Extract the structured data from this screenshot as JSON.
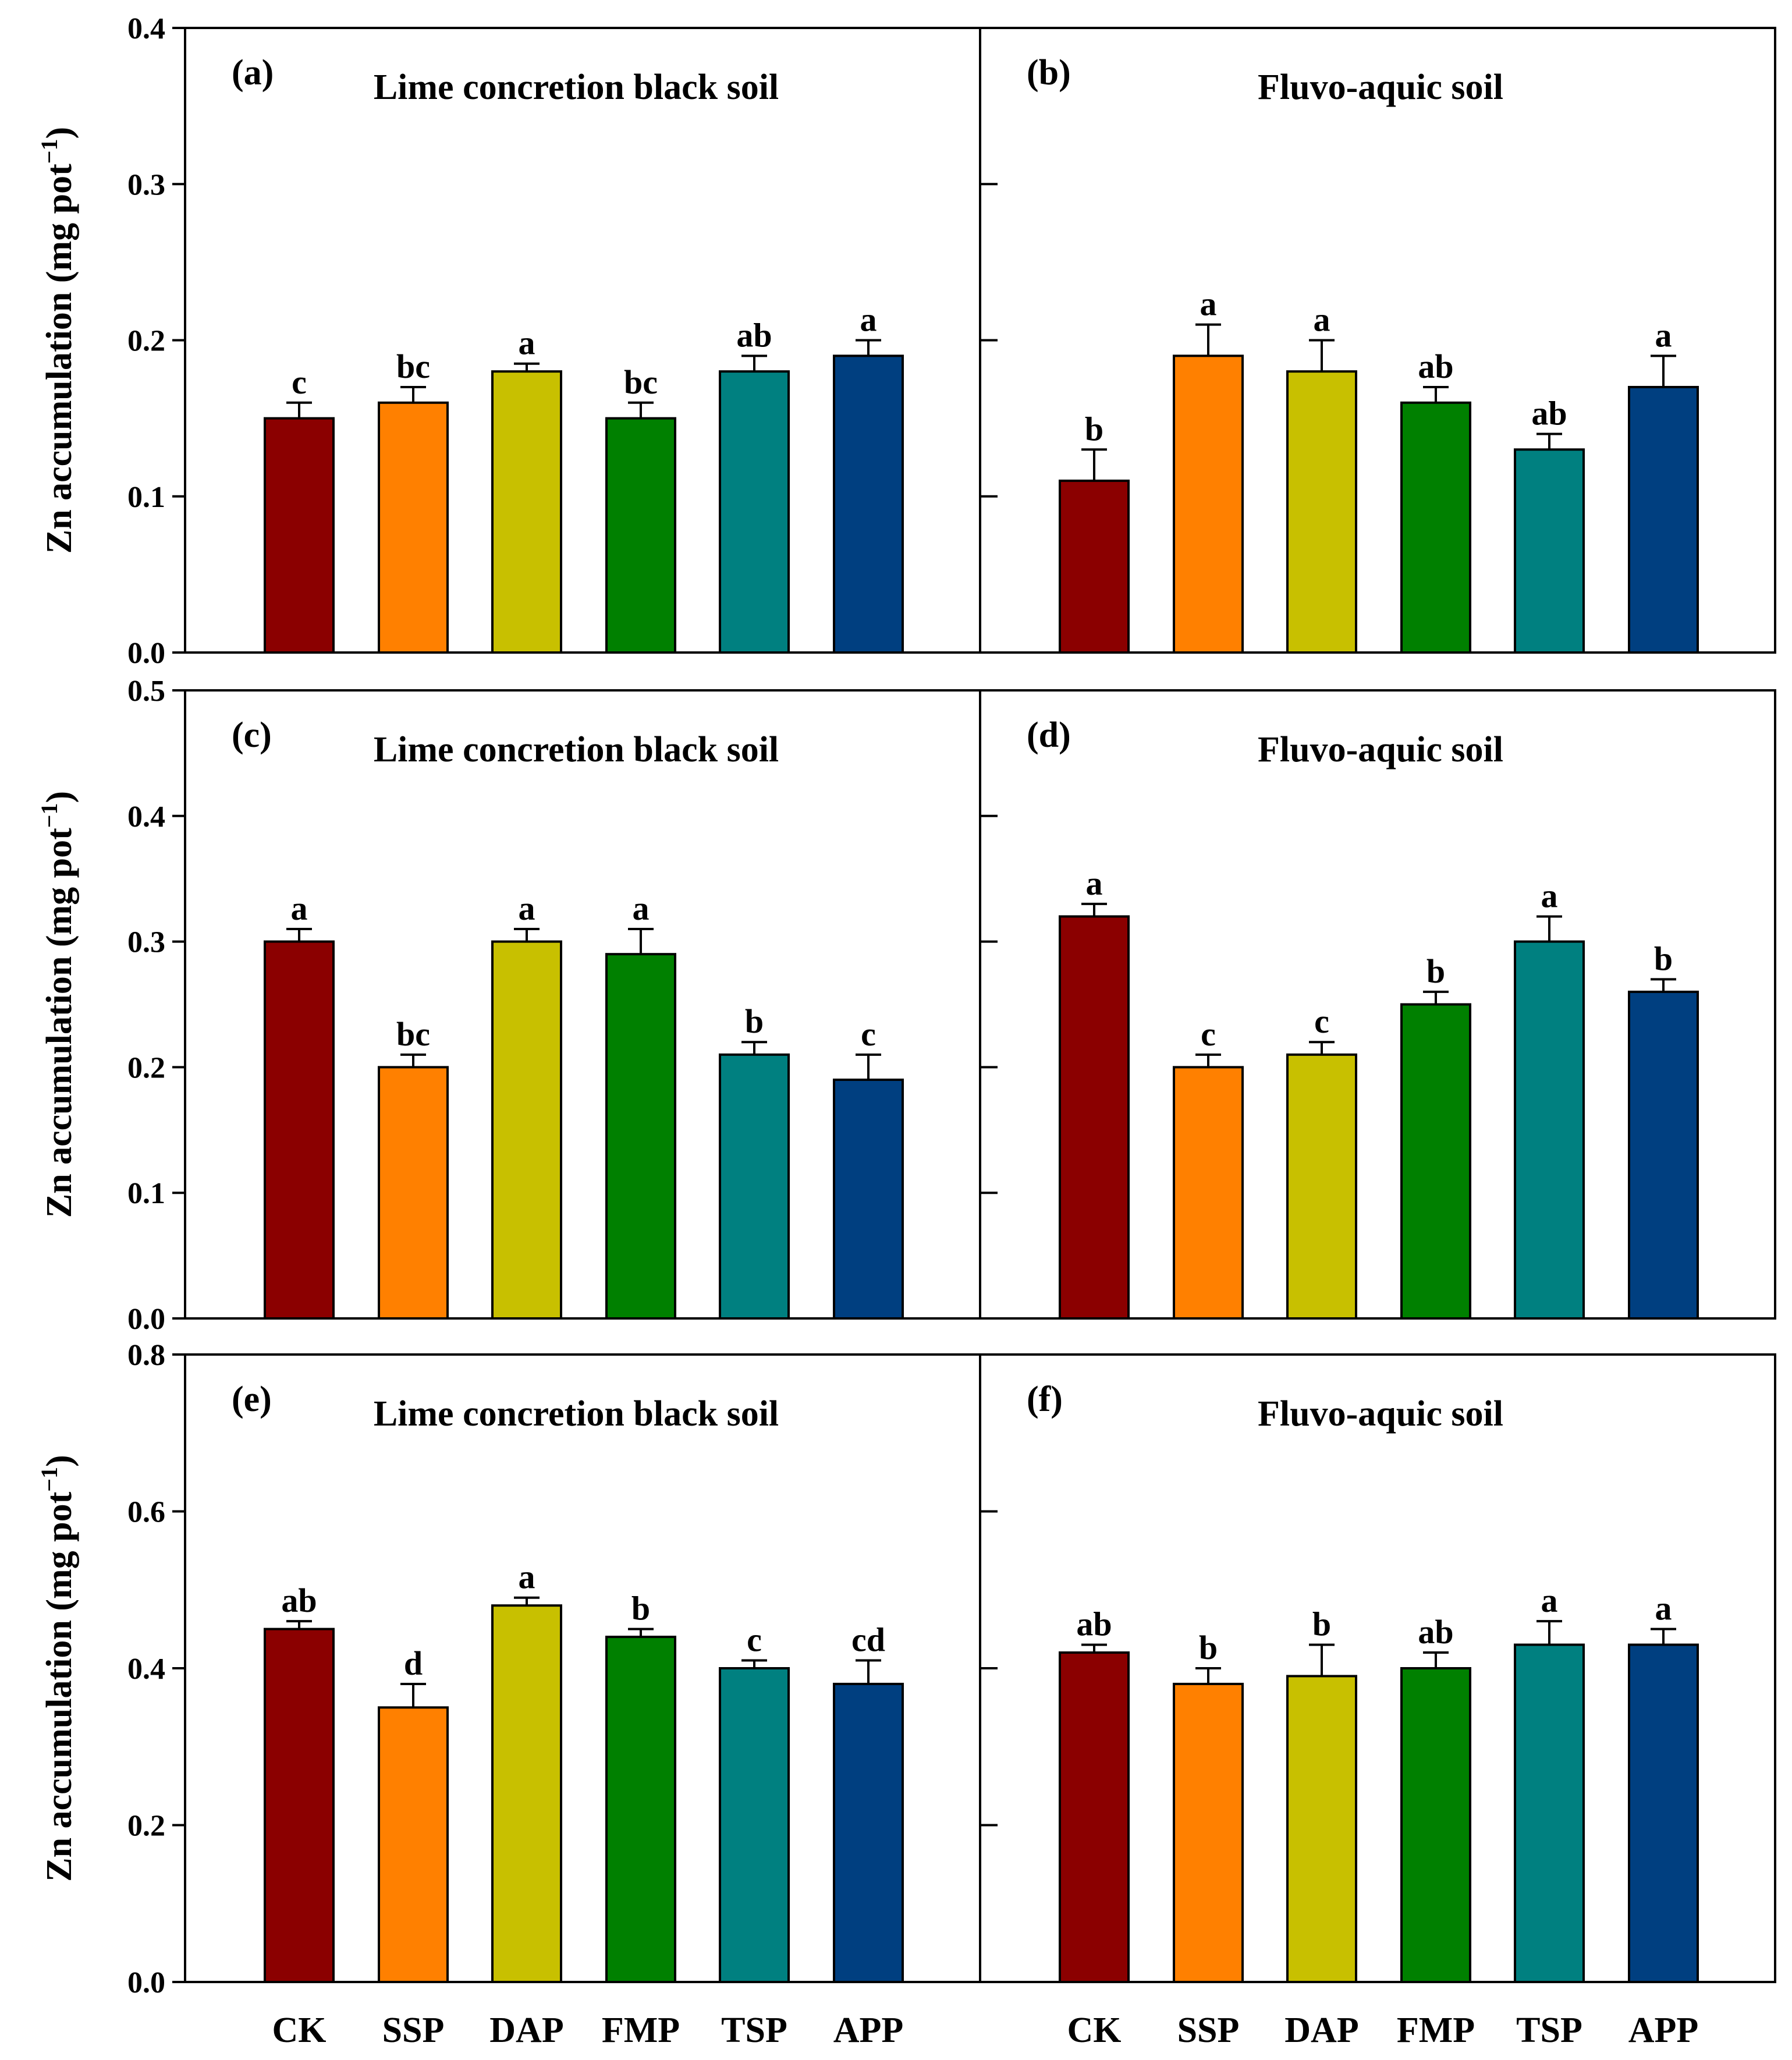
{
  "figure": {
    "categories": [
      "CK",
      "SSP",
      "DAP",
      "FMP",
      "TSP",
      "APP"
    ],
    "colors": [
      "#8B0000",
      "#FF8000",
      "#C8C000",
      "#008000",
      "#008080",
      "#003F80"
    ],
    "ylabel_main": "Zn accumulation (mg pot",
    "ylabel_sup": "−1",
    "ylabel_close": ")"
  },
  "chart_data": [
    {
      "type": "bar",
      "panel": "(a)",
      "title": "Lime concretion black soil",
      "categories": [
        "CK",
        "SSP",
        "DAP",
        "FMP",
        "TSP",
        "APP"
      ],
      "values": [
        0.15,
        0.16,
        0.18,
        0.15,
        0.18,
        0.19
      ],
      "errors": [
        0.01,
        0.01,
        0.005,
        0.01,
        0.01,
        0.01
      ],
      "letters": [
        "c",
        "bc",
        "a",
        "bc",
        "ab",
        "a"
      ],
      "ylabel": "Zn accumulation (mg pot−1)",
      "ylim": [
        0,
        0.4
      ],
      "yticks": [
        0.0,
        0.1,
        0.2,
        0.3,
        0.4
      ],
      "ytick_labels": [
        "0.0",
        "0.1",
        "0.2",
        "0.3",
        "0.4"
      ]
    },
    {
      "type": "bar",
      "panel": "(b)",
      "title": "Fluvo-aquic soil",
      "categories": [
        "CK",
        "SSP",
        "DAP",
        "FMP",
        "TSP",
        "APP"
      ],
      "values": [
        0.11,
        0.19,
        0.18,
        0.16,
        0.13,
        0.17
      ],
      "errors": [
        0.02,
        0.02,
        0.02,
        0.01,
        0.01,
        0.02
      ],
      "letters": [
        "b",
        "a",
        "a",
        "ab",
        "ab",
        "a"
      ],
      "ylim": [
        0,
        0.4
      ],
      "yticks": [
        0.0,
        0.1,
        0.2,
        0.3,
        0.4
      ]
    },
    {
      "type": "bar",
      "panel": "(c)",
      "title": "Lime concretion black soil",
      "categories": [
        "CK",
        "SSP",
        "DAP",
        "FMP",
        "TSP",
        "APP"
      ],
      "values": [
        0.3,
        0.2,
        0.3,
        0.29,
        0.21,
        0.19
      ],
      "errors": [
        0.01,
        0.01,
        0.01,
        0.02,
        0.01,
        0.02
      ],
      "letters": [
        "a",
        "bc",
        "a",
        "a",
        "b",
        "c"
      ],
      "ylabel": "Zn accumulation (mg pot−1)",
      "ylim": [
        0,
        0.5
      ],
      "yticks": [
        0.0,
        0.1,
        0.2,
        0.3,
        0.4,
        0.5
      ],
      "ytick_labels": [
        "0.0",
        "0.1",
        "0.2",
        "0.3",
        "0.4",
        "0.5"
      ]
    },
    {
      "type": "bar",
      "panel": "(d)",
      "title": "Fluvo-aquic soil",
      "categories": [
        "CK",
        "SSP",
        "DAP",
        "FMP",
        "TSP",
        "APP"
      ],
      "values": [
        0.32,
        0.2,
        0.21,
        0.25,
        0.3,
        0.26
      ],
      "errors": [
        0.01,
        0.01,
        0.01,
        0.01,
        0.02,
        0.01
      ],
      "letters": [
        "a",
        "c",
        "c",
        "b",
        "a",
        "b"
      ],
      "ylim": [
        0,
        0.5
      ],
      "yticks": [
        0.0,
        0.1,
        0.2,
        0.3,
        0.4,
        0.5
      ]
    },
    {
      "type": "bar",
      "panel": "(e)",
      "title": "Lime concretion black soil",
      "categories": [
        "CK",
        "SSP",
        "DAP",
        "FMP",
        "TSP",
        "APP"
      ],
      "values": [
        0.45,
        0.35,
        0.48,
        0.44,
        0.4,
        0.38
      ],
      "errors": [
        0.01,
        0.03,
        0.01,
        0.01,
        0.01,
        0.03
      ],
      "letters": [
        "ab",
        "d",
        "a",
        "b",
        "c",
        "cd"
      ],
      "ylabel": "Zn accumulation (mg pot−1)",
      "ylim": [
        0,
        0.8
      ],
      "yticks": [
        0.0,
        0.2,
        0.4,
        0.6,
        0.8
      ],
      "ytick_labels": [
        "0.0",
        "0.2",
        "0.4",
        "0.6",
        "0.8"
      ],
      "xtick_labels": [
        "CK",
        "SSP",
        "DAP",
        "FMP",
        "TSP",
        "APP"
      ]
    },
    {
      "type": "bar",
      "panel": "(f)",
      "title": "Fluvo-aquic soil",
      "categories": [
        "CK",
        "SSP",
        "DAP",
        "FMP",
        "TSP",
        "APP"
      ],
      "values": [
        0.42,
        0.38,
        0.39,
        0.4,
        0.43,
        0.43
      ],
      "errors": [
        0.01,
        0.02,
        0.04,
        0.02,
        0.03,
        0.02
      ],
      "letters": [
        "ab",
        "b",
        "b",
        "ab",
        "a",
        "a"
      ],
      "ylim": [
        0,
        0.8
      ],
      "yticks": [
        0.0,
        0.2,
        0.4,
        0.6,
        0.8
      ],
      "xtick_labels": [
        "CK",
        "SSP",
        "DAP",
        "FMP",
        "TSP",
        "APP"
      ]
    }
  ]
}
